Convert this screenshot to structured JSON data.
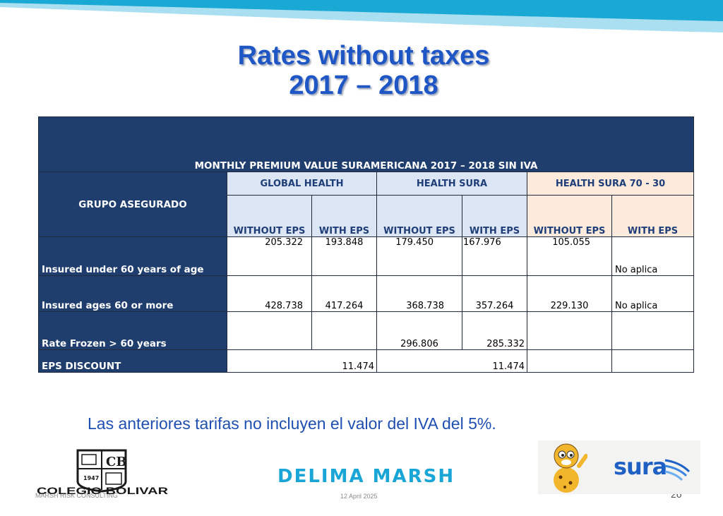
{
  "slide": {
    "title_line1": "Rates without taxes",
    "title_line2": "2017 – 2018",
    "note": "Las anteriores tarifas no incluyen el valor del IVA del 5%.",
    "footer_left": "MARSH RISK CONSULTING",
    "footer_date": "12 April 2025",
    "page_number": "26"
  },
  "logos": {
    "colegio_name": "COLEGIO BOLIVAR",
    "colegio_monogram": "CB",
    "colegio_year": "1947",
    "delima": "DELIMA MARSH",
    "sura": "sura"
  },
  "table": {
    "caption": "MONTHLY PREMIUM VALUE SURAMERICANA 2017 – 2018  SIN IVA",
    "group_header": "GRUPO ASEGURADO",
    "plans": [
      "GLOBAL HEALTH",
      "HEALTH SURA",
      "HEALTH SURA 70 - 30"
    ],
    "subheaders": [
      "WITHOUT EPS",
      "WITH EPS",
      "WITHOUT EPS",
      "WITH EPS",
      "WITHOUT EPS",
      "WITH EPS"
    ],
    "rows": [
      {
        "label": "Insured under 60 years of age",
        "values": [
          "205.322",
          "193.848",
          "179.450",
          "167.976",
          "105.055",
          "No aplica"
        ]
      },
      {
        "label": "Insured ages 60 or more",
        "values": [
          "428.738",
          "417.264",
          "368.738",
          "357.264",
          "229.130",
          "No aplica"
        ]
      },
      {
        "label": "Rate Frozen > 60 years",
        "values": [
          "",
          "",
          "296.806",
          "285.332",
          "",
          ""
        ]
      }
    ],
    "discount": {
      "label": "EPS DISCOUNT",
      "global_health": "11.474",
      "health_sura": "11.474"
    }
  },
  "colors": {
    "title": "#1f56c6",
    "header_dark": "#1f3e6e",
    "header_light_blue": "#dbe5f4",
    "header_peach": "#fcebdd",
    "accent_cyan": "#19a5d6"
  }
}
